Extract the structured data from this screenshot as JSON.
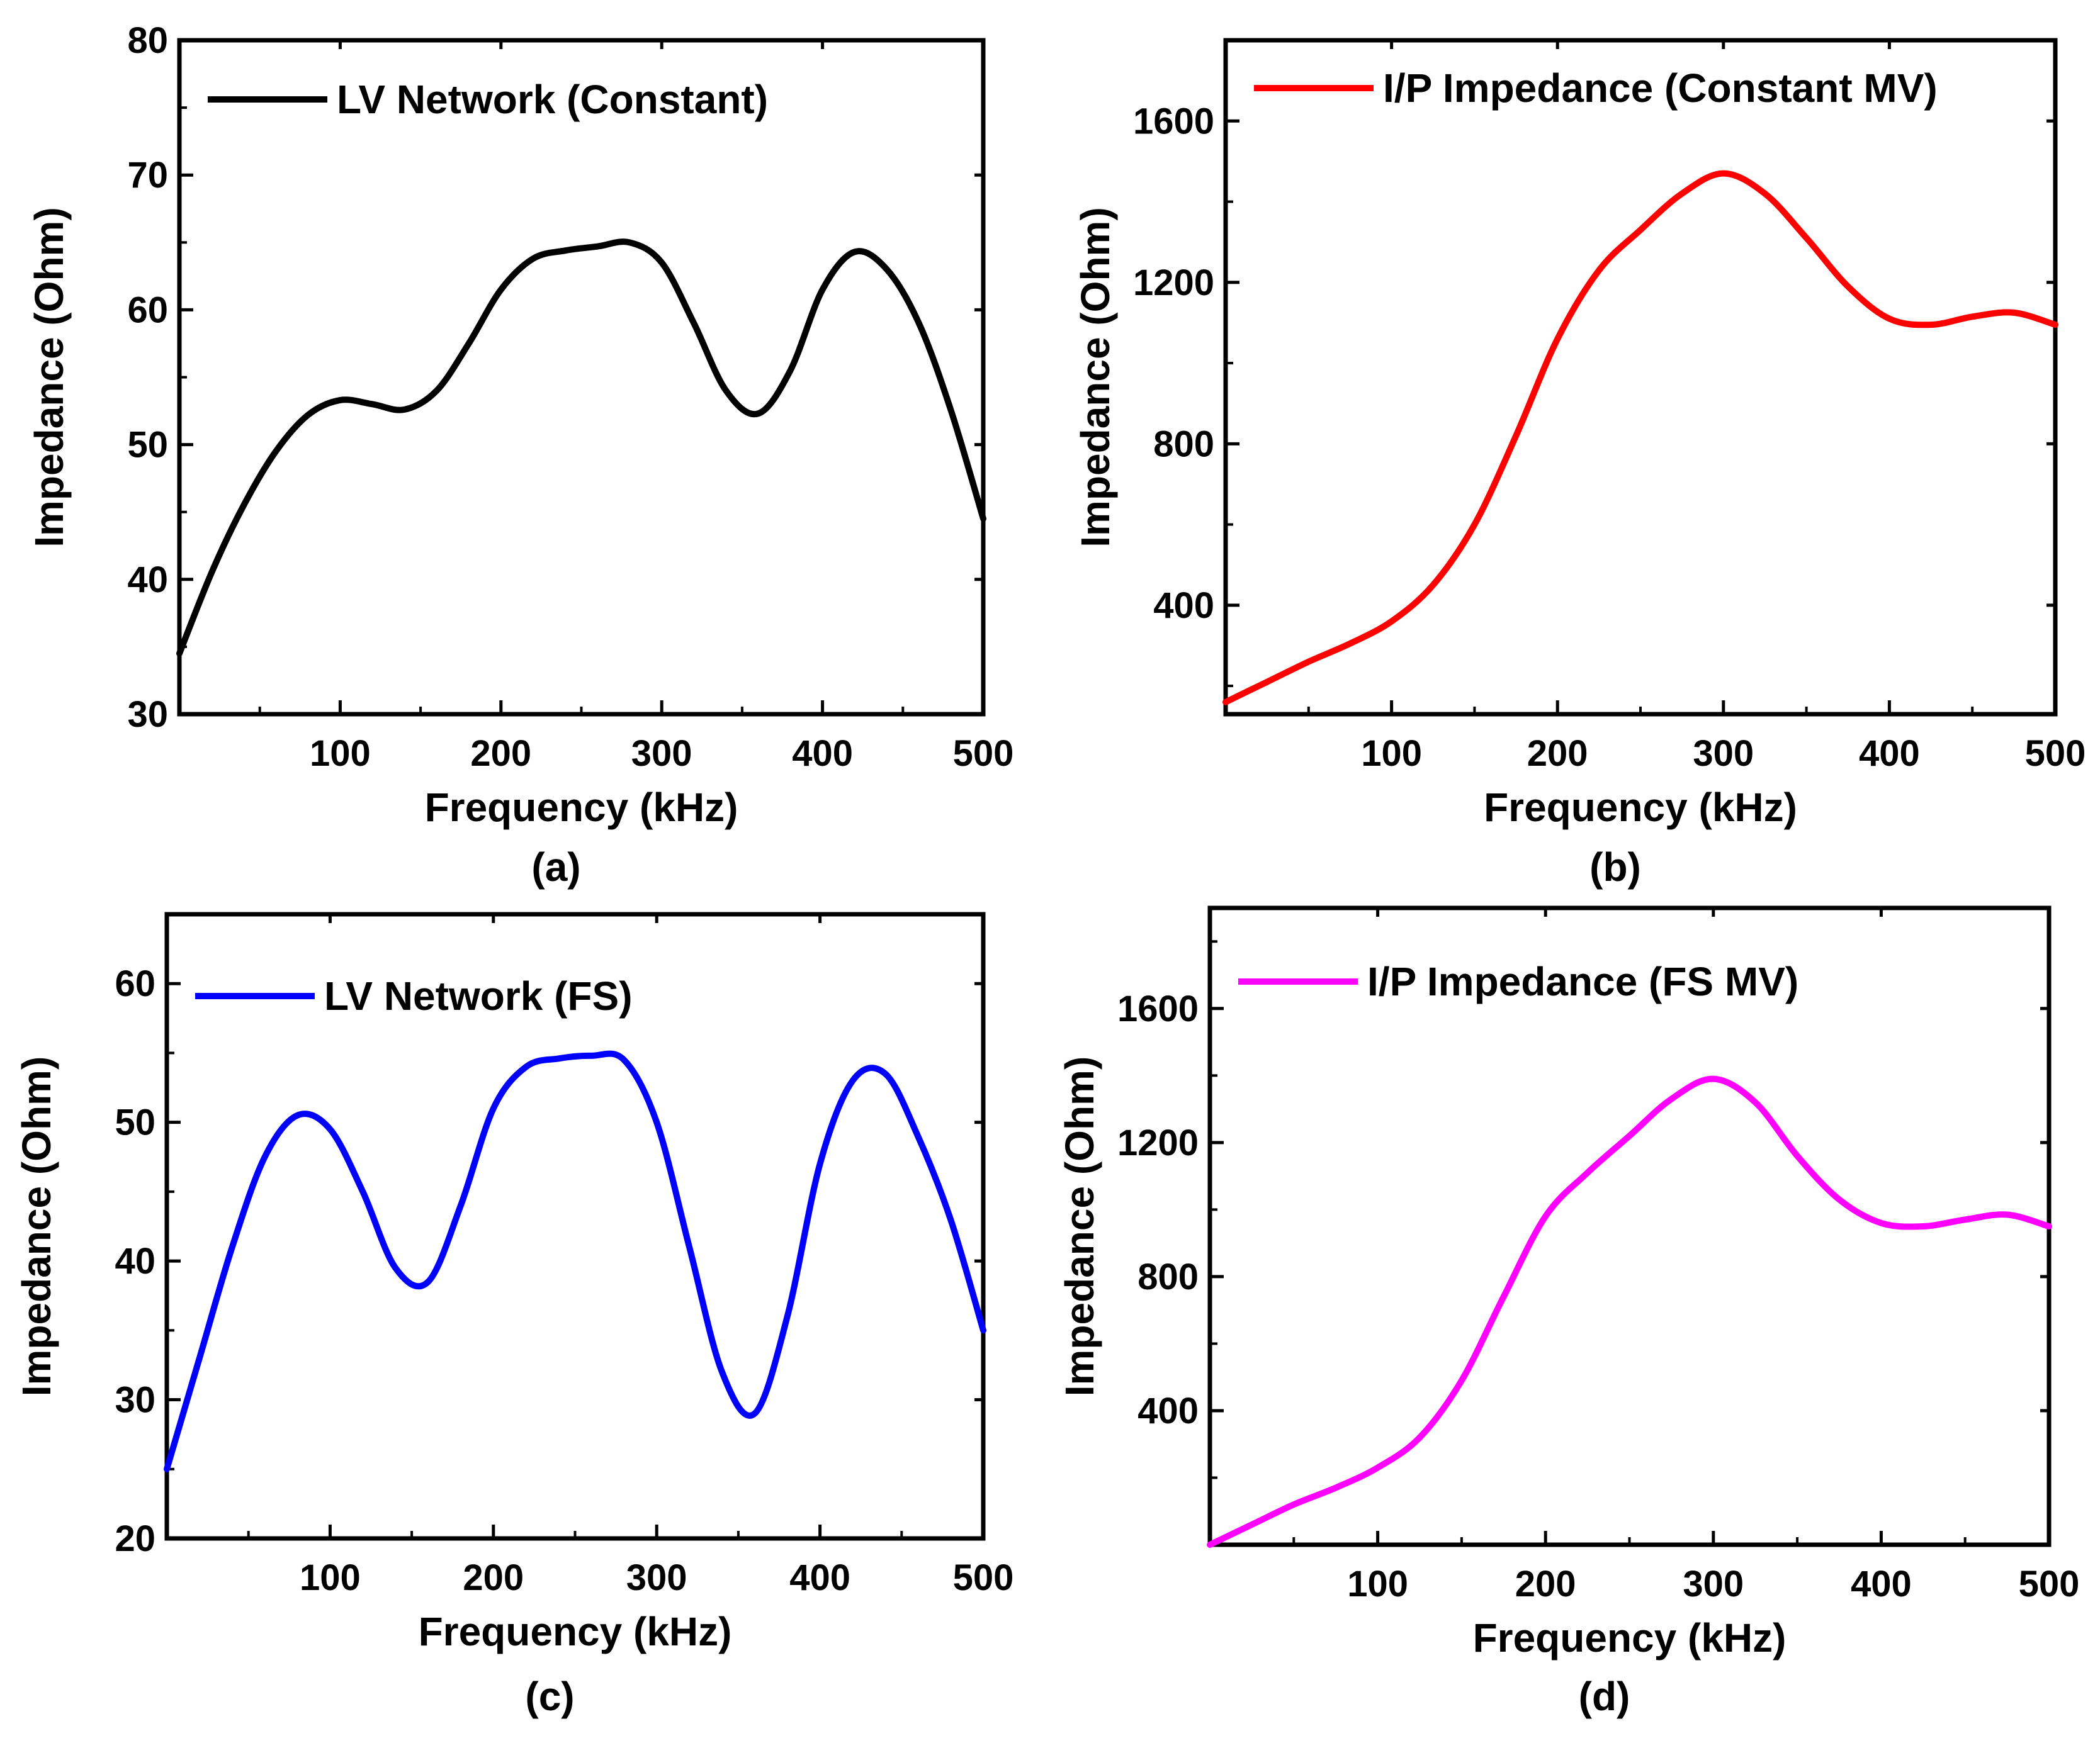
{
  "chart_data": [
    {
      "type": "line",
      "caption": "(a)",
      "xlabel": "Frequency (kHz)",
      "ylabel": "Impedance (Ohm)",
      "xlim": [
        0,
        500
      ],
      "ylim": [
        30,
        80
      ],
      "xticks": [
        100,
        200,
        300,
        400,
        500
      ],
      "yticks": [
        30,
        40,
        50,
        60,
        70,
        80
      ],
      "legend_position": "top-left",
      "series": [
        {
          "name": "LV Network (Constant)",
          "color": "#000000",
          "x": [
            0,
            20,
            40,
            60,
            80,
            100,
            120,
            140,
            160,
            180,
            200,
            220,
            240,
            260,
            280,
            300,
            320,
            340,
            360,
            380,
            400,
            420,
            440,
            460,
            480,
            500
          ],
          "y": [
            34.5,
            40.5,
            45.5,
            49.5,
            52.2,
            53.3,
            53.0,
            52.6,
            54.0,
            57.5,
            61.5,
            63.8,
            64.4,
            64.7,
            65.0,
            63.5,
            59.0,
            54.0,
            52.3,
            55.5,
            61.5,
            64.3,
            63.0,
            59.0,
            52.5,
            44.5
          ]
        }
      ]
    },
    {
      "type": "line",
      "caption": "(b)",
      "xlabel": "Frequency (kHz)",
      "ylabel": "Impedance (Ohm)",
      "xlim": [
        0,
        500
      ],
      "ylim": [
        130,
        1800
      ],
      "xticks": [
        100,
        200,
        300,
        400,
        500
      ],
      "yticks": [
        400,
        800,
        1200,
        1600
      ],
      "legend_position": "top-left",
      "series": [
        {
          "name": "I/P Impedance  (Constant MV)",
          "color": "#ff0000",
          "x": [
            0,
            25,
            50,
            75,
            100,
            125,
            150,
            175,
            200,
            225,
            250,
            275,
            300,
            325,
            350,
            375,
            400,
            425,
            450,
            475,
            500
          ],
          "y": [
            160,
            210,
            260,
            305,
            360,
            450,
            600,
            820,
            1060,
            1230,
            1330,
            1420,
            1470,
            1420,
            1310,
            1190,
            1110,
            1095,
            1115,
            1125,
            1095
          ]
        }
      ]
    },
    {
      "type": "line",
      "caption": "(c)",
      "xlabel": "Frequency (kHz)",
      "ylabel": "Impedance (Ohm)",
      "xlim": [
        0,
        500
      ],
      "ylim": [
        20,
        65
      ],
      "xticks": [
        100,
        200,
        300,
        400,
        500
      ],
      "yticks": [
        20,
        30,
        40,
        50,
        60
      ],
      "legend_position": "top-left",
      "series": [
        {
          "name": "LV Network (FS)",
          "color": "#0000ff",
          "x": [
            0,
            20,
            40,
            60,
            80,
            100,
            120,
            140,
            160,
            180,
            200,
            220,
            240,
            260,
            280,
            300,
            320,
            340,
            360,
            380,
            400,
            420,
            440,
            460,
            480,
            500
          ],
          "y": [
            25,
            33,
            41,
            47.5,
            50.5,
            49.5,
            45,
            39.5,
            38.5,
            44,
            51,
            54,
            54.6,
            54.8,
            54.5,
            50,
            41,
            32,
            29,
            36,
            47,
            53,
            53.5,
            49,
            43,
            35
          ]
        }
      ]
    },
    {
      "type": "line",
      "caption": "(d)",
      "xlabel": "Frequency (kHz)",
      "ylabel": "Impedance (Ohm)",
      "xlim": [
        0,
        500
      ],
      "ylim": [
        0,
        1900
      ],
      "xticks": [
        100,
        200,
        300,
        400,
        500
      ],
      "yticks": [
        400,
        800,
        1200,
        1600
      ],
      "legend_position": "top-left",
      "series": [
        {
          "name": "I/P Impedance  (FS MV)",
          "color": "#ff00ff",
          "x": [
            0,
            25,
            50,
            75,
            100,
            125,
            150,
            175,
            200,
            225,
            250,
            275,
            300,
            325,
            350,
            375,
            400,
            425,
            450,
            475,
            500
          ],
          "y": [
            0,
            60,
            120,
            170,
            230,
            320,
            490,
            740,
            980,
            1110,
            1220,
            1330,
            1390,
            1320,
            1160,
            1030,
            960,
            950,
            970,
            985,
            950
          ]
        }
      ]
    }
  ]
}
